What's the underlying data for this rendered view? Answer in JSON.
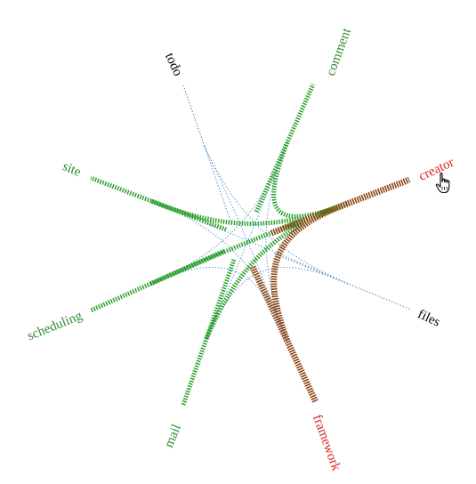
{
  "colors": {
    "background": "#ffffff",
    "default_edge": "#4a90c8",
    "highlight_edge": "#2ca02c",
    "hover_edge": "#8b4513",
    "default_label": "#000000",
    "highlight_label": "#2e8b2e",
    "hover_label": "#d62728"
  },
  "hovered_axis": "creator",
  "axes": [
    {
      "id": "todo",
      "label": "todo",
      "state": "default"
    },
    {
      "id": "comment",
      "label": "comment",
      "state": "highlight"
    },
    {
      "id": "creator",
      "label": "creator",
      "state": "hover"
    },
    {
      "id": "files",
      "label": "files",
      "state": "default"
    },
    {
      "id": "framework",
      "label": "framework",
      "state": "hover"
    },
    {
      "id": "mail",
      "label": "mail",
      "state": "highlight"
    },
    {
      "id": "scheduling",
      "label": "scheduling",
      "state": "highlight"
    },
    {
      "id": "site",
      "label": "site",
      "state": "highlight"
    }
  ],
  "links": [
    {
      "source": "todo",
      "target": "files",
      "state": "default"
    },
    {
      "source": "todo",
      "target": "framework",
      "state": "default"
    },
    {
      "source": "comment",
      "target": "framework",
      "state": "default"
    },
    {
      "source": "comment",
      "target": "scheduling",
      "state": "default"
    },
    {
      "source": "site",
      "target": "files",
      "state": "default"
    },
    {
      "source": "site",
      "target": "framework",
      "state": "default"
    },
    {
      "source": "scheduling",
      "target": "framework",
      "state": "default"
    },
    {
      "source": "mail",
      "target": "files",
      "state": "default"
    },
    {
      "source": "mail",
      "target": "comment",
      "state": "default"
    },
    {
      "source": "creator",
      "target": "comment",
      "state": "highlight"
    },
    {
      "source": "creator",
      "target": "site",
      "state": "highlight"
    },
    {
      "source": "creator",
      "target": "scheduling",
      "state": "highlight"
    },
    {
      "source": "creator",
      "target": "mail",
      "state": "highlight"
    },
    {
      "source": "creator",
      "target": "framework",
      "state": "hover"
    }
  ]
}
